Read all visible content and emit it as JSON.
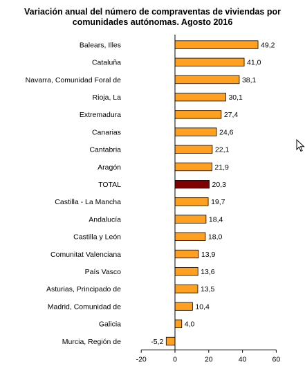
{
  "title": {
    "line1": "Variación anual del número de compraventas de viviendas por",
    "line2": "comunidades autónomas. Agosto 2016"
  },
  "chart_data": {
    "type": "bar",
    "orientation": "horizontal",
    "categories": [
      "Balears, Illes",
      "Cataluña",
      "Navarra, Comunidad Foral de",
      "Rioja, La",
      "Extremadura",
      "Canarias",
      "Cantabria",
      "Aragón",
      "TOTAL",
      "Castilla - La Mancha",
      "Andalucía",
      "Castilla y León",
      "Comunitat Valenciana",
      "País Vasco",
      "Asturias, Principado de",
      "Madrid, Comunidad de",
      "Galicia",
      "Murcia, Región de"
    ],
    "values": [
      49.2,
      41.0,
      38.1,
      30.1,
      27.4,
      24.6,
      22.1,
      21.9,
      20.3,
      19.7,
      18.4,
      18.0,
      13.9,
      13.6,
      13.5,
      10.4,
      4.0,
      -5.2
    ],
    "value_labels": [
      "49,2",
      "41,0",
      "38,1",
      "30,1",
      "27,4",
      "24,6",
      "22,1",
      "21,9",
      "20,3",
      "19,7",
      "18,4",
      "18,0",
      "13,9",
      "13,6",
      "13,5",
      "10,4",
      "4,0",
      "-5,2"
    ],
    "highlight_category": "TOTAL",
    "xlim": [
      -20,
      60
    ],
    "xticks": [
      -20,
      0,
      20,
      40,
      60
    ],
    "xtick_labels": [
      "-20",
      "0",
      "20",
      "40",
      "60"
    ],
    "grid": false,
    "legend": "none",
    "colors": {
      "bar": "#FFA020",
      "highlight": "#800000",
      "bar_edge": "#000000"
    }
  },
  "icons": {
    "cursor": "mouse-pointer-icon"
  }
}
